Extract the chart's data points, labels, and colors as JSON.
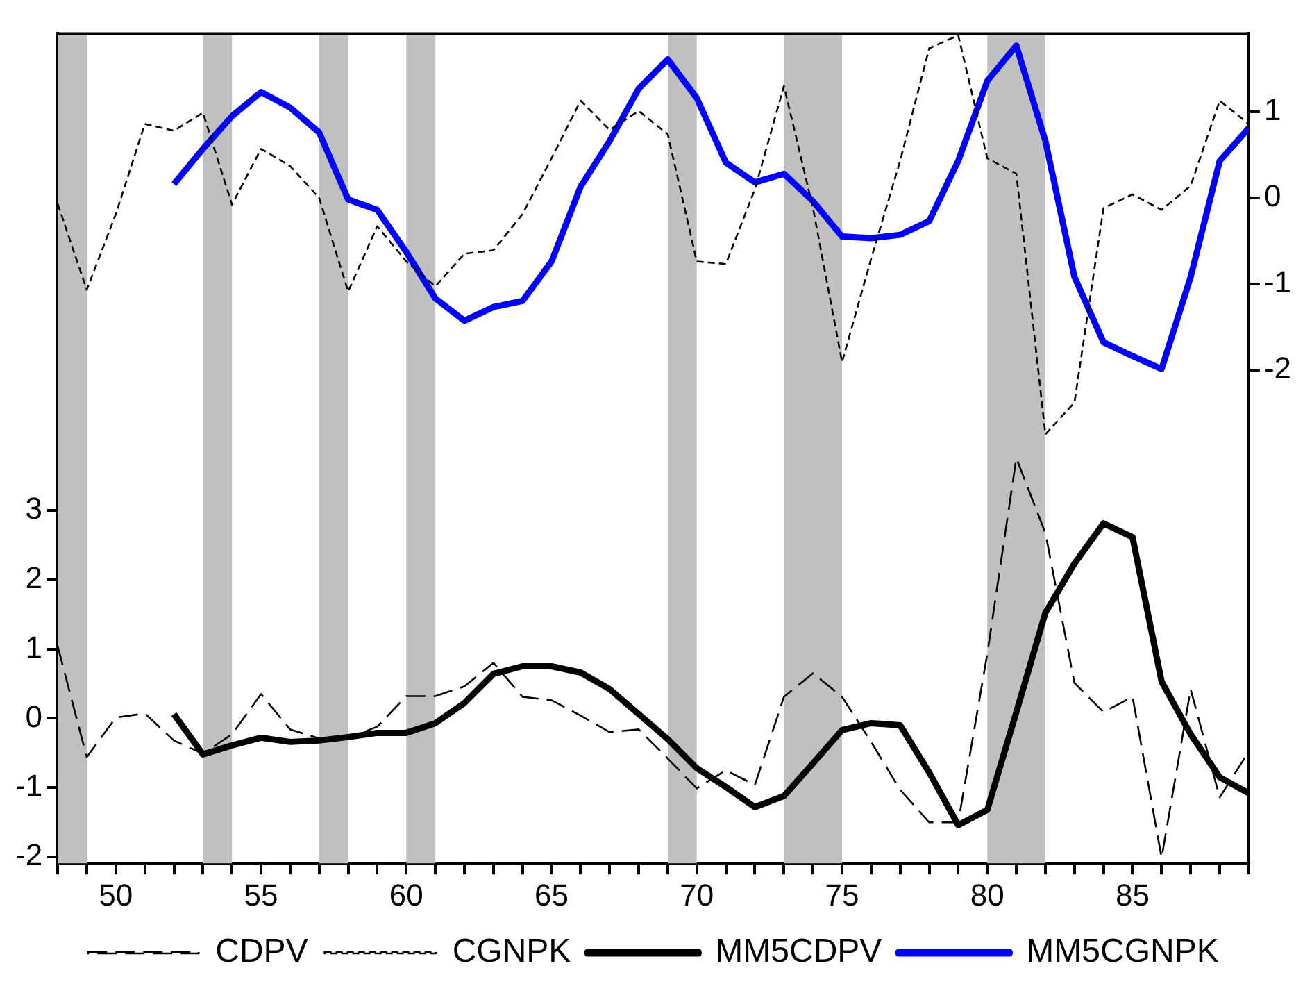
{
  "chart_data": {
    "type": "line",
    "x": [
      48,
      49,
      50,
      51,
      52,
      53,
      54,
      55,
      56,
      57,
      58,
      59,
      60,
      61,
      62,
      63,
      64,
      65,
      66,
      67,
      68,
      69,
      70,
      71,
      72,
      73,
      74,
      75,
      76,
      77,
      78,
      79,
      80,
      81,
      82,
      83,
      84,
      85,
      86,
      87,
      88,
      89
    ],
    "series": [
      {
        "name": "CDPV",
        "color": "#000000",
        "line_style": "dashed",
        "values": [
          1.04,
          -0.56,
          0.01,
          0.07,
          -0.32,
          -0.51,
          -0.23,
          0.35,
          -0.16,
          -0.29,
          -0.29,
          -0.12,
          0.32,
          0.32,
          0.46,
          0.8,
          0.31,
          0.26,
          0.04,
          -0.2,
          -0.16,
          -0.58,
          -1.01,
          -0.75,
          -0.96,
          0.31,
          0.65,
          0.31,
          -0.34,
          -1.03,
          -1.5,
          -1.5,
          0.93,
          3.75,
          2.67,
          0.51,
          0.09,
          0.31,
          -2.01,
          0.42,
          -1.14,
          -0.48
        ]
      },
      {
        "name": "CGNPK",
        "color": "#000000",
        "line_style": "dotted",
        "axis": "y2",
        "values": [
          -0.07,
          -1.07,
          -0.19,
          0.86,
          0.78,
          0.99,
          -0.08,
          0.57,
          0.37,
          0.0,
          -1.09,
          -0.33,
          -0.74,
          -1.03,
          -0.65,
          -0.61,
          -0.19,
          0.46,
          1.13,
          0.79,
          1.01,
          0.74,
          -0.74,
          -0.77,
          0.1,
          1.3,
          -0.12,
          -1.91,
          -0.71,
          0.43,
          1.74,
          1.89,
          0.46,
          0.28,
          -2.75,
          -2.38,
          -0.12,
          0.04,
          -0.14,
          0.14,
          1.13,
          0.86
        ]
      },
      {
        "name": "MM5CDPV",
        "color": "#000000",
        "line_style": "solid",
        "values": [
          null,
          null,
          null,
          null,
          0.06,
          -0.52,
          -0.39,
          -0.28,
          -0.34,
          -0.32,
          -0.27,
          -0.21,
          -0.21,
          -0.07,
          0.22,
          0.64,
          0.75,
          0.75,
          0.66,
          0.42,
          0.06,
          -0.3,
          -0.72,
          -0.99,
          -1.28,
          -1.12,
          -0.65,
          -0.17,
          -0.07,
          -0.1,
          -0.78,
          -1.54,
          -1.32,
          0.09,
          1.52,
          2.23,
          2.81,
          2.61,
          0.53,
          -0.23,
          -0.85,
          -1.08
        ]
      },
      {
        "name": "MM5CGNPK",
        "color": "#0000ff",
        "line_style": "solid",
        "axis": "y2",
        "values": [
          null,
          null,
          null,
          null,
          0.16,
          0.57,
          0.95,
          1.23,
          1.05,
          0.76,
          -0.02,
          -0.14,
          -0.63,
          -1.17,
          -1.43,
          -1.27,
          -1.2,
          -0.74,
          0.13,
          0.66,
          1.27,
          1.61,
          1.16,
          0.41,
          0.18,
          0.28,
          -0.04,
          -0.45,
          -0.47,
          -0.43,
          -0.27,
          0.43,
          1.36,
          1.77,
          0.66,
          -0.92,
          -1.68,
          -1.84,
          -1.99,
          -0.92,
          0.43,
          0.81
        ]
      }
    ],
    "xlim": [
      48,
      89
    ],
    "xticks": [
      {
        "value": 48,
        "label": null
      },
      {
        "value": 49,
        "label": null
      },
      50,
      {
        "value": 51,
        "label": null
      },
      {
        "value": 52,
        "label": null
      },
      {
        "value": 53,
        "label": null
      },
      {
        "value": 54,
        "label": null
      },
      55,
      {
        "value": 56,
        "label": null
      },
      {
        "value": 57,
        "label": null
      },
      {
        "value": 58,
        "label": null
      },
      {
        "value": 59,
        "label": null
      },
      60,
      {
        "value": 61,
        "label": null
      },
      {
        "value": 62,
        "label": null
      },
      {
        "value": 63,
        "label": null
      },
      {
        "value": 64,
        "label": null
      },
      65,
      {
        "value": 66,
        "label": null
      },
      {
        "value": 67,
        "label": null
      },
      {
        "value": 68,
        "label": null
      },
      {
        "value": 69,
        "label": null
      },
      70,
      {
        "value": 71,
        "label": null
      },
      {
        "value": 72,
        "label": null
      },
      {
        "value": 73,
        "label": null
      },
      {
        "value": 74,
        "label": null
      },
      75,
      {
        "value": 76,
        "label": null
      },
      {
        "value": 77,
        "label": null
      },
      {
        "value": 78,
        "label": null
      },
      {
        "value": 79,
        "label": null
      },
      80,
      {
        "value": 81,
        "label": null
      },
      {
        "value": 82,
        "label": null
      },
      {
        "value": 83,
        "label": null
      },
      {
        "value": 84,
        "label": null
      },
      85,
      {
        "value": 86,
        "label": null
      },
      {
        "value": 87,
        "label": null
      },
      {
        "value": 88,
        "label": null
      },
      {
        "value": 89,
        "label": null
      }
    ],
    "ylim": [
      -2.09,
      9.87
    ],
    "yticks": [
      -2,
      -1,
      0,
      1,
      2,
      3
    ],
    "y2lim": [
      -7.74,
      1.91
    ],
    "y2ticks": [
      -2,
      -1,
      0,
      1
    ],
    "bands": [
      {
        "axis": "x",
        "from": 48,
        "to": 49,
        "color": "#c0c0c0"
      },
      {
        "axis": "x",
        "from": 53,
        "to": 54,
        "color": "#c0c0c0"
      },
      {
        "axis": "x",
        "from": 57,
        "to": 58,
        "color": "#c0c0c0"
      },
      {
        "axis": "x",
        "from": 60,
        "to": 61,
        "color": "#c0c0c0"
      },
      {
        "axis": "x",
        "from": 69,
        "to": 70,
        "color": "#c0c0c0"
      },
      {
        "axis": "x",
        "from": 73,
        "to": 75,
        "color": "#c0c0c0"
      },
      {
        "axis": "x",
        "from": 80,
        "to": 82,
        "color": "#c0c0c0"
      }
    ],
    "grid": false,
    "legend": "bottom",
    "marker": "none"
  }
}
